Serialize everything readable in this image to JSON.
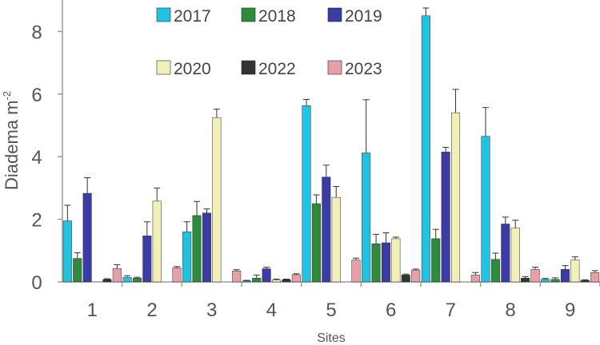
{
  "chart_data": {
    "type": "bar",
    "xlabel": "Sites",
    "ylabel": "Diadema m",
    "ylabel_superscript": "-2",
    "categories": [
      "1",
      "2",
      "3",
      "4",
      "5",
      "6",
      "7",
      "8",
      "9"
    ],
    "yticks": [
      "0",
      "2",
      "4",
      "6",
      "8"
    ],
    "ylim": [
      0,
      9.0
    ],
    "grid": false,
    "legend": "top-center, two rows",
    "series": [
      {
        "name": "2017",
        "color": "#22c3e0",
        "values": [
          1.95,
          0.15,
          1.6,
          0.03,
          5.63,
          4.12,
          8.5,
          4.65,
          0.08
        ],
        "errors": [
          0.5,
          0.05,
          0.32,
          0.02,
          0.2,
          1.7,
          0.25,
          0.92,
          0.03
        ]
      },
      {
        "name": "2018",
        "color": "#2e8b3c",
        "values": [
          0.75,
          0.12,
          2.12,
          0.12,
          2.5,
          1.22,
          1.38,
          0.72,
          0.08
        ],
        "errors": [
          0.18,
          0.03,
          0.45,
          0.1,
          0.28,
          0.3,
          0.3,
          0.2,
          0.05
        ]
      },
      {
        "name": "2019",
        "color": "#3c3ca6",
        "values": [
          2.83,
          1.47,
          2.2,
          0.42,
          3.35,
          1.25,
          4.15,
          1.85,
          0.4
        ],
        "errors": [
          0.5,
          0.45,
          0.13,
          0.05,
          0.38,
          0.32,
          0.15,
          0.22,
          0.12
        ]
      },
      {
        "name": "2020",
        "color": "#f0f0b8",
        "values": [
          0.0,
          2.58,
          5.25,
          0.06,
          2.7,
          1.38,
          5.4,
          1.72,
          0.7
        ],
        "errors": [
          0.0,
          0.42,
          0.27,
          0.03,
          0.35,
          0.05,
          0.75,
          0.25,
          0.1
        ]
      },
      {
        "name": "2022",
        "color": "#333333",
        "values": [
          0.08,
          0.0,
          0.0,
          0.07,
          0.0,
          0.22,
          0.0,
          0.12,
          0.05
        ],
        "errors": [
          0.02,
          0.0,
          0.0,
          0.02,
          0.0,
          0.03,
          0.0,
          0.05,
          0.02
        ]
      },
      {
        "name": "2023",
        "color": "#e8a0a8",
        "values": [
          0.43,
          0.45,
          0.35,
          0.23,
          0.7,
          0.38,
          0.22,
          0.4,
          0.3
        ],
        "errors": [
          0.12,
          0.04,
          0.04,
          0.03,
          0.06,
          0.03,
          0.08,
          0.07,
          0.06
        ]
      }
    ]
  }
}
